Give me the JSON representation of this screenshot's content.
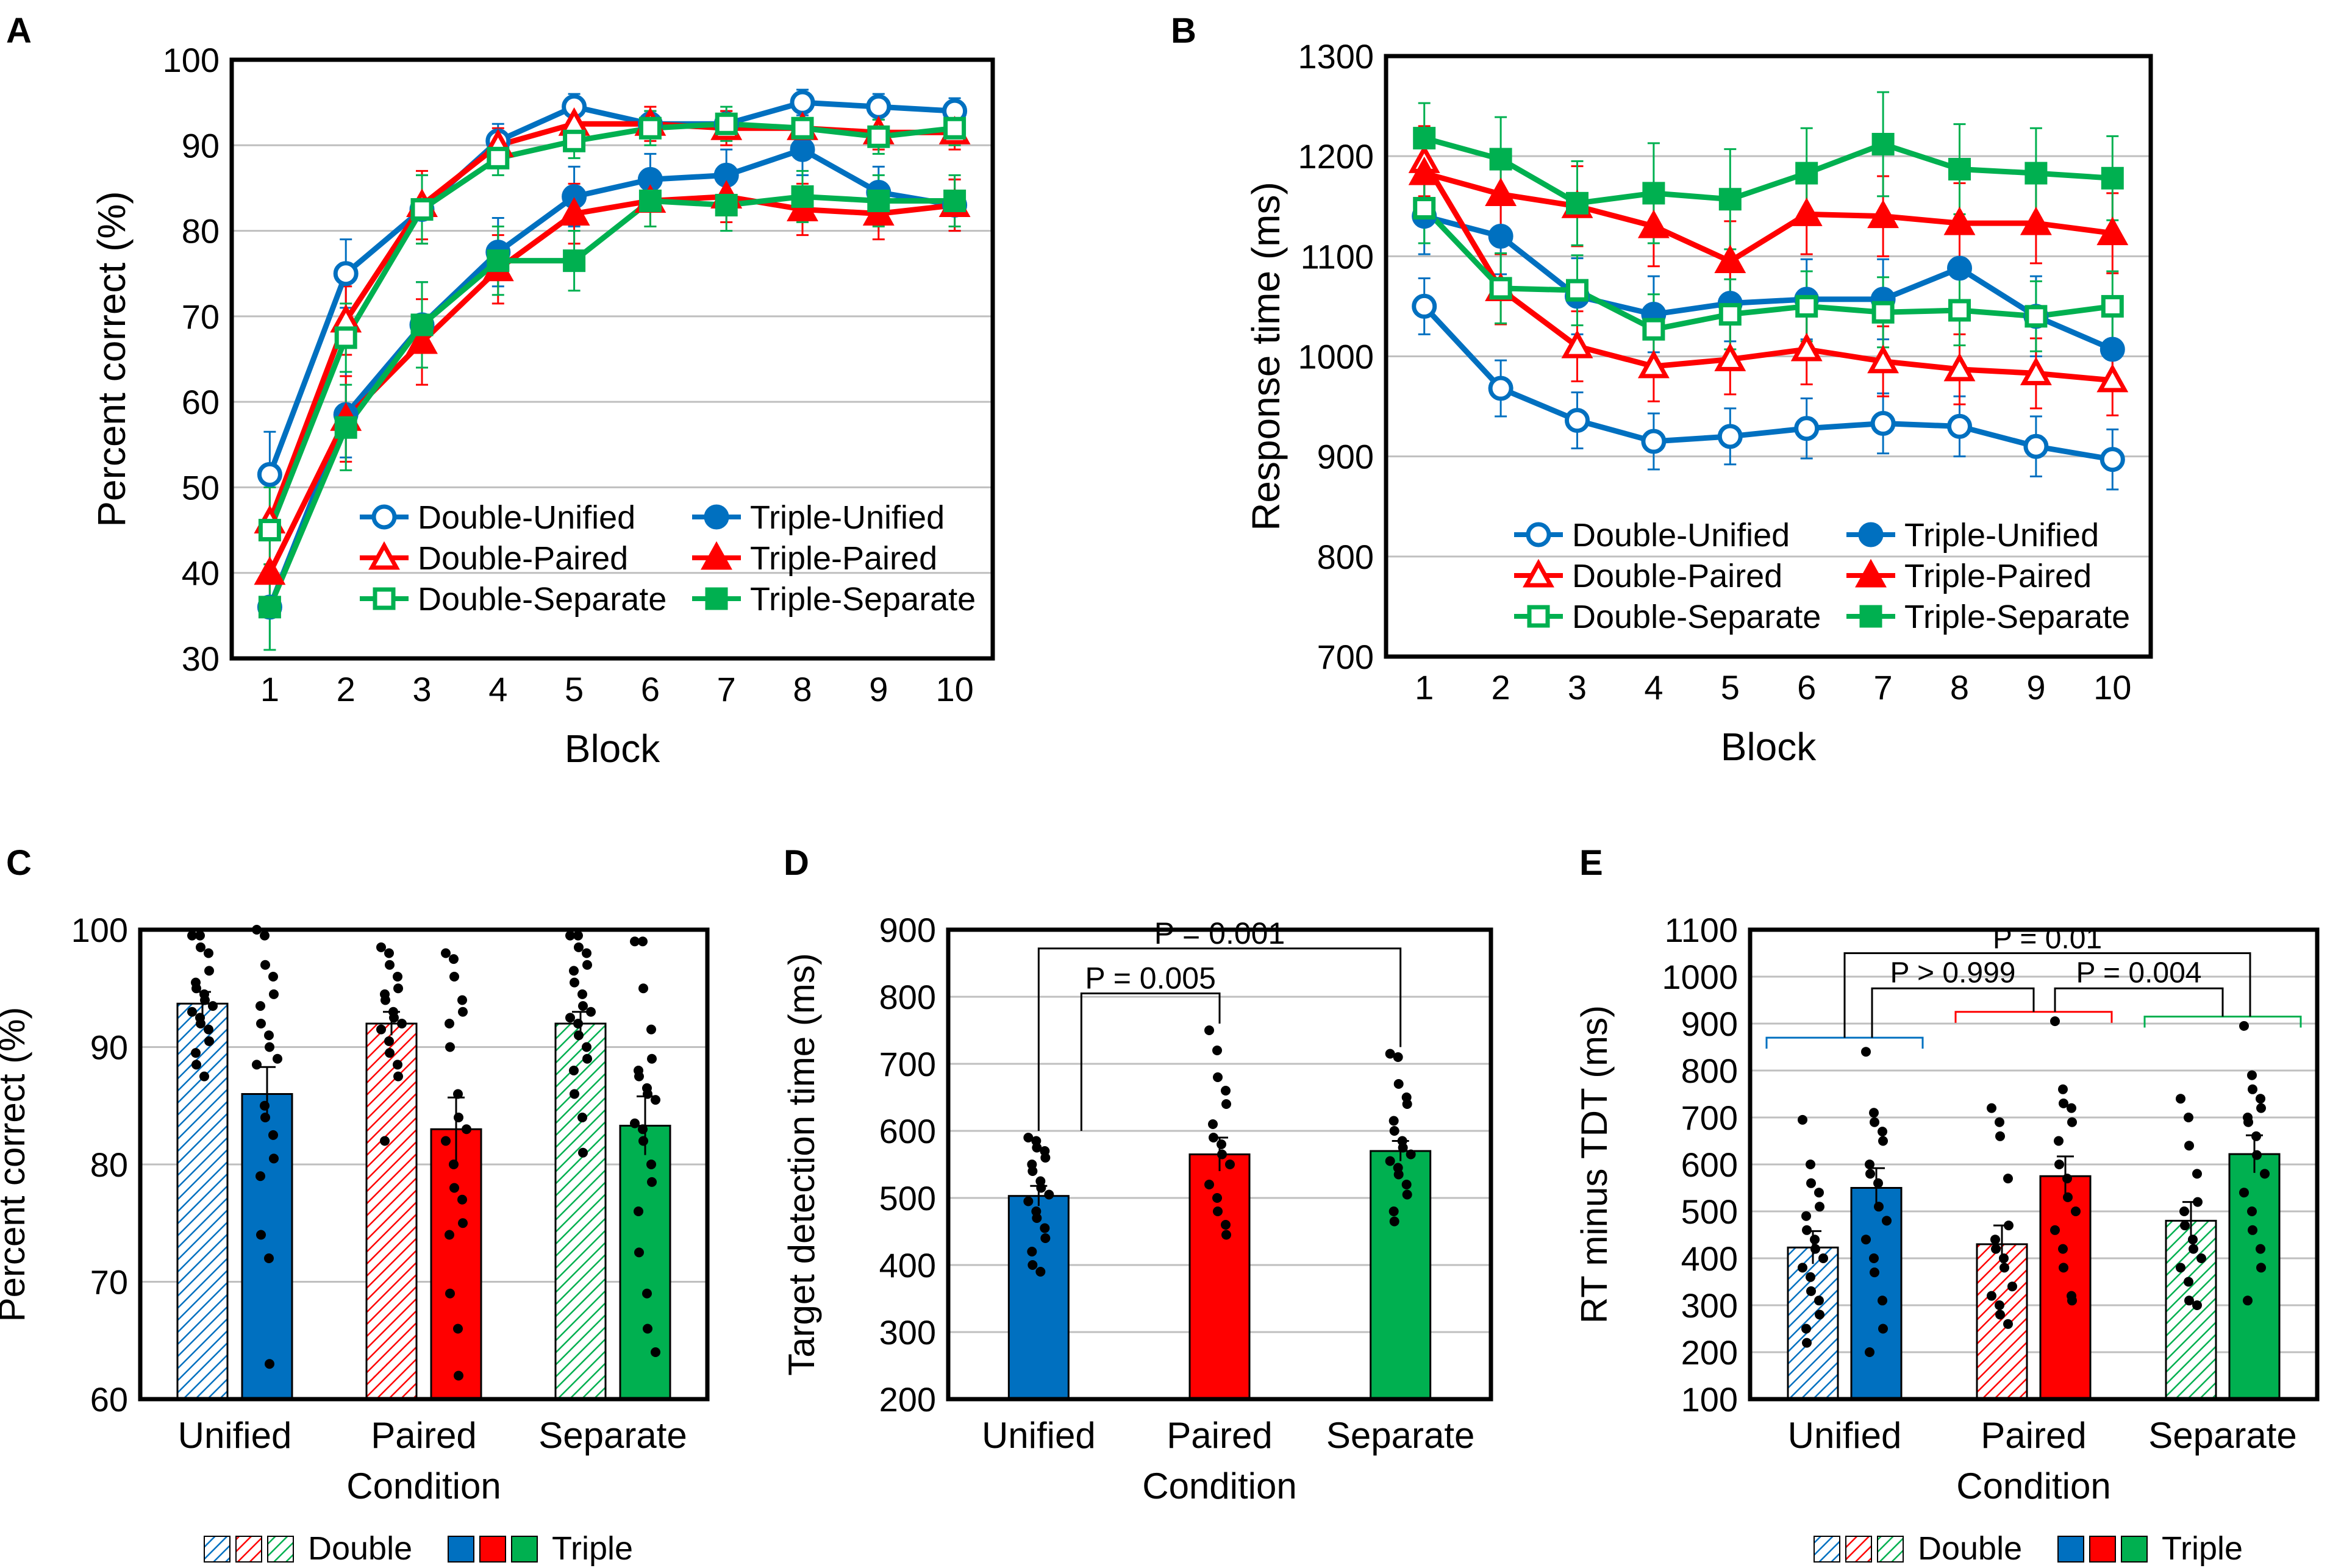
{
  "figure": {
    "panel_labels": [
      "A",
      "B",
      "C",
      "D",
      "E"
    ],
    "colors": {
      "unified": "#0070C0",
      "paired": "#FF0000",
      "separate": "#00B050",
      "grid": "#BFBFBF",
      "axis": "#000000"
    }
  },
  "chart_data": [
    {
      "panel": "A",
      "type": "line",
      "xlabel": "Block",
      "ylabel": "Percent correct (%)",
      "ylim": [
        30,
        100
      ],
      "yticks": [
        30,
        40,
        50,
        60,
        70,
        80,
        90,
        100
      ],
      "x": [
        1,
        2,
        3,
        4,
        5,
        6,
        7,
        8,
        9,
        10
      ],
      "legend": {
        "position": "bottom-right",
        "entries": [
          "Double-Unified",
          "Triple-Unified",
          "Double-Paired",
          "Triple-Paired",
          "Double-Separate",
          "Triple-Separate"
        ]
      },
      "series": [
        {
          "name": "Double-Unified",
          "color": "#0070C0",
          "marker": "circle-open",
          "values": [
            51.5,
            75,
            82.5,
            90.5,
            94.5,
            92.5,
            92.5,
            95,
            94.5,
            94
          ],
          "errors": [
            5,
            4,
            4,
            2,
            1.5,
            1.5,
            1.5,
            1.5,
            1.5,
            1.5
          ]
        },
        {
          "name": "Triple-Unified",
          "color": "#0070C0",
          "marker": "circle-filled",
          "values": [
            36,
            58.5,
            69,
            77.5,
            84,
            86,
            86.5,
            89.5,
            84.5,
            83
          ],
          "errors": [
            5,
            5,
            5,
            4,
            3.5,
            3,
            3,
            3,
            3,
            3
          ]
        },
        {
          "name": "Double-Paired",
          "color": "#FF0000",
          "marker": "triangle-open",
          "values": [
            46,
            69.5,
            83,
            90,
            92.5,
            92.5,
            92,
            92,
            91.5,
            91.5
          ],
          "errors": [
            5,
            4,
            4,
            2,
            2,
            2,
            2,
            2,
            2,
            2
          ]
        },
        {
          "name": "Triple-Paired",
          "color": "#FF0000",
          "marker": "triangle-filled",
          "values": [
            40,
            58,
            67,
            75.5,
            82,
            83.5,
            84,
            82.5,
            82,
            83
          ],
          "errors": [
            5,
            5,
            5,
            4,
            3.5,
            3,
            3,
            3,
            3,
            3
          ]
        },
        {
          "name": "Double-Separate",
          "color": "#00B050",
          "marker": "square-open",
          "values": [
            45,
            67.5,
            82.5,
            88.5,
            90.5,
            92,
            92.5,
            92,
            91,
            92
          ],
          "errors": [
            5,
            4,
            4,
            2,
            2,
            2,
            2,
            2,
            2,
            2
          ]
        },
        {
          "name": "Triple-Separate",
          "color": "#00B050",
          "marker": "square-filled",
          "values": [
            36,
            57,
            69,
            76.5,
            76.5,
            83.5,
            83,
            84,
            83.5,
            83.5
          ],
          "errors": [
            5,
            5,
            5,
            4,
            3.5,
            3,
            3,
            3,
            3,
            3
          ]
        }
      ]
    },
    {
      "panel": "B",
      "type": "line",
      "xlabel": "Block",
      "ylabel": "Response time (ms)",
      "ylim": [
        700,
        1300
      ],
      "yticks": [
        700,
        800,
        900,
        1000,
        1100,
        1200,
        1300
      ],
      "x": [
        1,
        2,
        3,
        4,
        5,
        6,
        7,
        8,
        9,
        10
      ],
      "legend": {
        "position": "bottom",
        "entries": [
          "Double-Unified",
          "Triple-Unified",
          "Double-Paired",
          "Triple-Paired",
          "Double-Separate",
          "Triple-Separate"
        ]
      },
      "series": [
        {
          "name": "Double-Unified",
          "color": "#0070C0",
          "marker": "circle-open",
          "values": [
            1050,
            968,
            936,
            915,
            920,
            928,
            933,
            930,
            910,
            897
          ],
          "errors": [
            28,
            28,
            28,
            28,
            28,
            30,
            30,
            30,
            30,
            30
          ]
        },
        {
          "name": "Triple-Unified",
          "color": "#0070C0",
          "marker": "circle-filled",
          "values": [
            1140,
            1120,
            1060,
            1042,
            1053,
            1057,
            1057,
            1088,
            1040,
            1007
          ],
          "errors": [
            38,
            38,
            38,
            38,
            38,
            40,
            40,
            40,
            40,
            40
          ]
        },
        {
          "name": "Double-Paired",
          "color": "#FF0000",
          "marker": "triangle-open",
          "values": [
            1195,
            1067,
            1010,
            990,
            997,
            1007,
            995,
            987,
            983,
            976
          ],
          "errors": [
            35,
            35,
            35,
            35,
            35,
            35,
            35,
            35,
            35,
            35
          ]
        },
        {
          "name": "Triple-Paired",
          "color": "#FF0000",
          "marker": "triangle-filled",
          "values": [
            1183,
            1162,
            1150,
            1130,
            1095,
            1142,
            1140,
            1133,
            1133,
            1123
          ],
          "errors": [
            40,
            40,
            40,
            40,
            40,
            40,
            40,
            40,
            40,
            40
          ]
        },
        {
          "name": "Double-Separate",
          "color": "#00B050",
          "marker": "square-open",
          "values": [
            1148,
            1068,
            1066,
            1027,
            1042,
            1050,
            1044,
            1046,
            1040,
            1050
          ],
          "errors": [
            35,
            35,
            35,
            35,
            35,
            35,
            35,
            35,
            35,
            35
          ]
        },
        {
          "name": "Triple-Separate",
          "color": "#00B050",
          "marker": "square-filled",
          "values": [
            1218,
            1197,
            1153,
            1163,
            1157,
            1183,
            1212,
            1187,
            1183,
            1178
          ],
          "errors": [
            35,
            42,
            42,
            50,
            50,
            45,
            52,
            45,
            45,
            42
          ]
        }
      ]
    },
    {
      "panel": "C",
      "type": "bar",
      "xlabel": "Condition",
      "ylabel": "Percent correct (%)",
      "ylim": [
        60,
        100
      ],
      "yticks": [
        60,
        70,
        80,
        90,
        100
      ],
      "categories": [
        "Unified",
        "Paired",
        "Separate"
      ],
      "legend": {
        "position": "bottom",
        "entries": [
          "Double",
          "Triple"
        ]
      },
      "series": [
        {
          "name": "Double",
          "pattern": "hatched",
          "values": [
            93.7,
            92,
            92
          ],
          "errors": [
            1,
            1,
            1
          ]
        },
        {
          "name": "Triple",
          "pattern": "solid",
          "values": [
            86,
            83,
            83.3
          ],
          "errors": [
            2.3,
            2.7,
            2.5
          ]
        }
      ],
      "points": [
        [
          [
            99.5,
            99.5,
            98.5,
            98,
            96.5,
            95.5,
            95,
            94.5,
            94,
            93.5,
            93,
            92.5,
            92,
            91.5,
            90.5,
            89.5,
            88.5,
            87.5
          ],
          [
            100,
            99.5,
            97,
            96,
            94.5,
            93.5,
            92,
            91,
            90,
            89,
            88.5,
            85,
            84,
            82.5,
            80.5,
            79,
            74,
            72,
            63
          ]
        ],
        [
          [
            98.5,
            98,
            97,
            96,
            95,
            94.5,
            94,
            93,
            92.5,
            92,
            91.5,
            90.5,
            89.5,
            88.5,
            87.5,
            82
          ],
          [
            98,
            97.5,
            96,
            94,
            93,
            92,
            90,
            86,
            84,
            83,
            82,
            80,
            78,
            77,
            75,
            74,
            69,
            66,
            62
          ]
        ],
        [
          [
            99.5,
            99.5,
            98.5,
            98,
            97,
            96.5,
            95.5,
            94.5,
            93.5,
            93,
            92.5,
            92,
            91,
            90,
            89,
            88,
            86,
            84,
            81
          ],
          [
            99,
            99,
            95,
            91.5,
            89,
            88,
            87.5,
            86.5,
            86,
            85.5,
            83.5,
            83,
            82,
            80,
            78.5,
            76,
            72.5,
            69,
            66,
            64
          ]
        ]
      ]
    },
    {
      "panel": "D",
      "type": "bar",
      "xlabel": "Condition",
      "ylabel": "Target detection time (ms)",
      "ylim": [
        200,
        900
      ],
      "yticks": [
        200,
        300,
        400,
        500,
        600,
        700,
        800,
        900
      ],
      "categories": [
        "Unified",
        "Paired",
        "Separate"
      ],
      "values": [
        503,
        565,
        570
      ],
      "errors": [
        15,
        25,
        15
      ],
      "points": [
        [
          590,
          585,
          575,
          570,
          560,
          550,
          540,
          525,
          515,
          505,
          495,
          480,
          470,
          455,
          440,
          420,
          400,
          390
        ],
        [
          750,
          720,
          680,
          660,
          640,
          610,
          590,
          580,
          565,
          550,
          520,
          500,
          480,
          460,
          445
        ],
        [
          715,
          710,
          670,
          650,
          640,
          615,
          600,
          585,
          575,
          565,
          555,
          545,
          535,
          520,
          505,
          480,
          465
        ]
      ],
      "annotations": [
        {
          "text": "P = 0.001",
          "from": "Unified",
          "to": "Separate"
        },
        {
          "text": "P = 0.005",
          "from": "Unified",
          "to": "Paired"
        }
      ]
    },
    {
      "panel": "E",
      "type": "bar",
      "xlabel": "Condition",
      "ylabel": "RT minus TDT (ms)",
      "ylim": [
        100,
        1100
      ],
      "yticks": [
        100,
        200,
        300,
        400,
        500,
        600,
        700,
        800,
        900,
        1000,
        1100
      ],
      "categories": [
        "Unified",
        "Paired",
        "Separate"
      ],
      "legend": {
        "position": "bottom",
        "entries": [
          "Double",
          "Triple"
        ]
      },
      "series": [
        {
          "name": "Double",
          "pattern": "hatched",
          "values": [
            423,
            430,
            480
          ],
          "errors": [
            35,
            40,
            40
          ]
        },
        {
          "name": "Triple",
          "pattern": "solid",
          "values": [
            550,
            575,
            622
          ],
          "errors": [
            42,
            42,
            40
          ]
        }
      ],
      "points": [
        [
          [
            695,
            600,
            560,
            540,
            510,
            490,
            460,
            440,
            420,
            400,
            380,
            360,
            330,
            310,
            280,
            250,
            220
          ],
          [
            840,
            710,
            690,
            670,
            650,
            600,
            580,
            560,
            510,
            480,
            440,
            400,
            370,
            310,
            250,
            200
          ]
        ],
        [
          [
            720,
            690,
            660,
            570,
            470,
            440,
            420,
            400,
            380,
            340,
            320,
            300,
            280,
            260
          ],
          [
            905,
            760,
            730,
            720,
            690,
            650,
            600,
            570,
            530,
            500,
            460,
            420,
            380,
            320,
            310
          ]
        ],
        [
          [
            740,
            700,
            640,
            580,
            520,
            500,
            470,
            440,
            420,
            400,
            380,
            350,
            310,
            300
          ],
          [
            895,
            790,
            760,
            740,
            720,
            700,
            690,
            660,
            620,
            580,
            540,
            500,
            460,
            420,
            380,
            310
          ]
        ]
      ],
      "annotations": [
        {
          "text": "P = 0.01",
          "from": "Unified",
          "to": "Separate"
        },
        {
          "text": "P > 0.999",
          "from": "Unified",
          "to": "Paired"
        },
        {
          "text": "P = 0.004",
          "from": "Paired",
          "to": "Separate"
        }
      ]
    }
  ]
}
